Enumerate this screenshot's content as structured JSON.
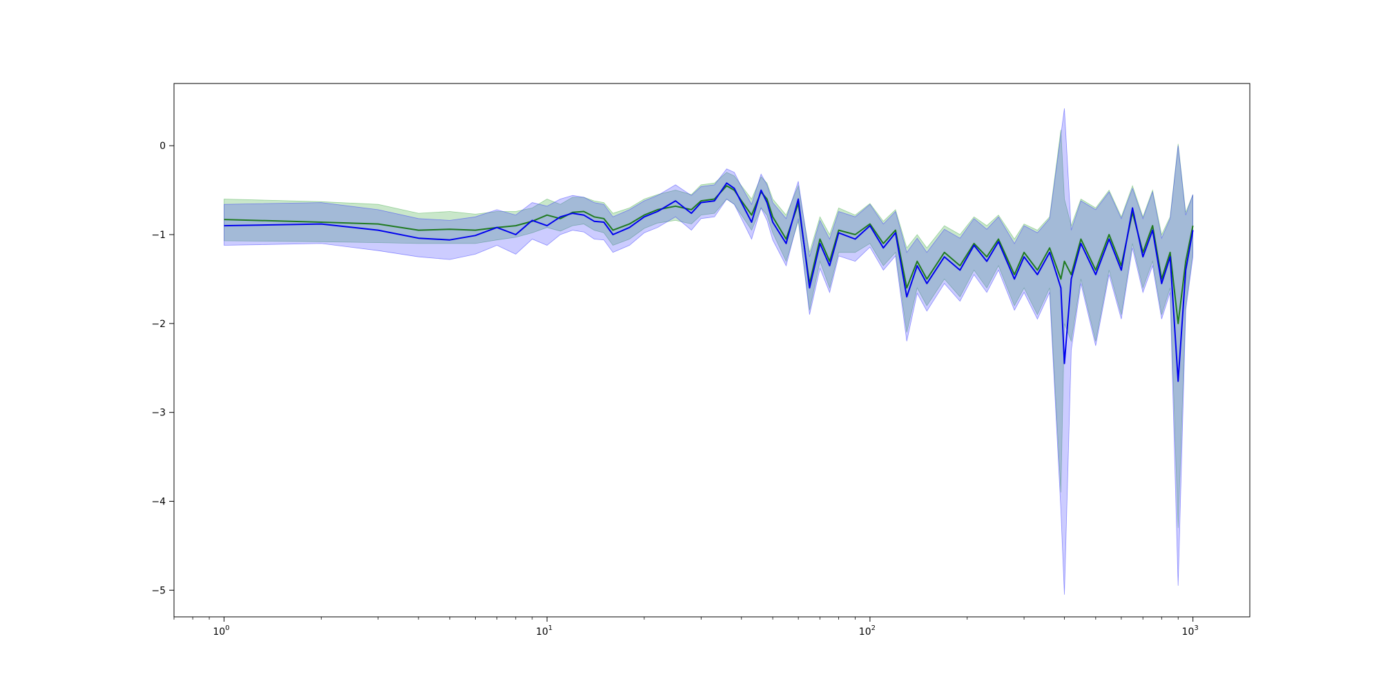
{
  "chart_data": {
    "type": "line",
    "title": "",
    "xlabel": "",
    "ylabel": "",
    "xscale": "log",
    "xlim": [
      0.7,
      1500
    ],
    "ylim": [
      -5.3,
      0.7
    ],
    "grid": false,
    "x_ticks": [
      1,
      10,
      100,
      1000
    ],
    "x_tick_labels": [
      {
        "base": "10",
        "exp": "0"
      },
      {
        "base": "10",
        "exp": "1"
      },
      {
        "base": "10",
        "exp": "2"
      },
      {
        "base": "10",
        "exp": "3"
      }
    ],
    "y_ticks": [
      0,
      -1,
      -2,
      -3,
      -4,
      -5
    ],
    "y_tick_labels": [
      "0",
      "−1",
      "−2",
      "−3",
      "−4",
      "−5"
    ],
    "series": [
      {
        "color": "#1f7a1f",
        "band_color": "#4caf50",
        "band_opacity": 0.3,
        "x": [
          1,
          2,
          3,
          4,
          5,
          6,
          7,
          8,
          9,
          10,
          11,
          12,
          13,
          14,
          15,
          16,
          18,
          20,
          22,
          25,
          28,
          30,
          33,
          36,
          38,
          40,
          43,
          46,
          48,
          50,
          55,
          60,
          65,
          70,
          75,
          80,
          90,
          100,
          110,
          120,
          130,
          140,
          150,
          170,
          190,
          210,
          230,
          250,
          280,
          300,
          330,
          360,
          390,
          400,
          420,
          450,
          500,
          550,
          600,
          650,
          700,
          750,
          800,
          850,
          900,
          950,
          1000
        ],
        "values": [
          -0.83,
          -0.86,
          -0.88,
          -0.95,
          -0.94,
          -0.95,
          -0.92,
          -0.9,
          -0.85,
          -0.78,
          -0.82,
          -0.75,
          -0.74,
          -0.8,
          -0.82,
          -0.95,
          -0.88,
          -0.78,
          -0.72,
          -0.68,
          -0.72,
          -0.62,
          -0.6,
          -0.45,
          -0.5,
          -0.62,
          -0.78,
          -0.52,
          -0.6,
          -0.8,
          -1.05,
          -0.65,
          -1.55,
          -1.05,
          -1.3,
          -0.95,
          -1.0,
          -0.88,
          -1.1,
          -0.95,
          -1.6,
          -1.3,
          -1.5,
          -1.2,
          -1.35,
          -1.1,
          -1.25,
          -1.05,
          -1.45,
          -1.2,
          -1.4,
          -1.15,
          -1.5,
          -1.3,
          -1.45,
          -1.05,
          -1.4,
          -1.0,
          -1.35,
          -0.75,
          -1.2,
          -0.9,
          -1.5,
          -1.2,
          -2.0,
          -1.3,
          -0.9
        ],
        "lower": [
          -1.07,
          -1.08,
          -1.09,
          -1.1,
          -1.1,
          -1.1,
          -1.06,
          -1.03,
          -0.98,
          -0.92,
          -0.96,
          -0.9,
          -0.88,
          -0.95,
          -0.98,
          -1.12,
          -1.05,
          -0.93,
          -0.87,
          -0.84,
          -0.88,
          -0.78,
          -0.76,
          -0.6,
          -0.66,
          -0.78,
          -0.95,
          -0.7,
          -0.78,
          -0.98,
          -1.3,
          -0.85,
          -1.85,
          -1.3,
          -1.6,
          -1.2,
          -1.2,
          -1.1,
          -1.35,
          -1.2,
          -2.1,
          -1.6,
          -1.8,
          -1.5,
          -1.7,
          -1.4,
          -1.6,
          -1.35,
          -1.8,
          -1.6,
          -1.9,
          -1.6,
          -3.9,
          -2.0,
          -2.2,
          -1.5,
          -2.2,
          -1.4,
          -1.9,
          -1.1,
          -1.6,
          -1.3,
          -1.9,
          -1.6,
          -4.3,
          -1.8,
          -1.2
        ],
        "upper": [
          -0.6,
          -0.63,
          -0.66,
          -0.76,
          -0.74,
          -0.77,
          -0.74,
          -0.74,
          -0.7,
          -0.6,
          -0.66,
          -0.58,
          -0.58,
          -0.62,
          -0.64,
          -0.76,
          -0.7,
          -0.6,
          -0.55,
          -0.5,
          -0.55,
          -0.44,
          -0.42,
          -0.3,
          -0.34,
          -0.45,
          -0.6,
          -0.35,
          -0.42,
          -0.6,
          -0.78,
          -0.45,
          -1.2,
          -0.8,
          -1.0,
          -0.7,
          -0.78,
          -0.65,
          -0.85,
          -0.72,
          -1.15,
          -1.0,
          -1.15,
          -0.9,
          -1.0,
          -0.8,
          -0.9,
          -0.78,
          -1.05,
          -0.88,
          -0.95,
          -0.8,
          0.18,
          -0.6,
          -0.9,
          -0.6,
          -0.7,
          -0.5,
          -0.8,
          -0.45,
          -0.8,
          -0.5,
          -1.0,
          -0.8,
          0.02,
          -0.75,
          -0.55
        ]
      },
      {
        "color": "#0000ee",
        "band_color": "#3333ff",
        "band_opacity": 0.25,
        "x": [
          1,
          2,
          3,
          4,
          5,
          6,
          7,
          8,
          9,
          10,
          11,
          12,
          13,
          14,
          15,
          16,
          18,
          20,
          22,
          25,
          28,
          30,
          33,
          36,
          38,
          40,
          43,
          46,
          48,
          50,
          55,
          60,
          65,
          70,
          75,
          80,
          90,
          100,
          110,
          120,
          130,
          140,
          150,
          170,
          190,
          210,
          230,
          250,
          280,
          300,
          330,
          360,
          390,
          400,
          420,
          450,
          500,
          550,
          600,
          650,
          700,
          750,
          800,
          850,
          900,
          950,
          1000
        ],
        "values": [
          -0.9,
          -0.88,
          -0.95,
          -1.04,
          -1.06,
          -1.01,
          -0.92,
          -1.0,
          -0.84,
          -0.9,
          -0.8,
          -0.76,
          -0.78,
          -0.85,
          -0.86,
          -1.0,
          -0.92,
          -0.8,
          -0.74,
          -0.62,
          -0.76,
          -0.64,
          -0.62,
          -0.42,
          -0.48,
          -0.64,
          -0.86,
          -0.5,
          -0.64,
          -0.86,
          -1.1,
          -0.6,
          -1.6,
          -1.1,
          -1.35,
          -0.98,
          -1.05,
          -0.9,
          -1.15,
          -0.98,
          -1.7,
          -1.35,
          -1.55,
          -1.25,
          -1.4,
          -1.12,
          -1.3,
          -1.08,
          -1.5,
          -1.25,
          -1.45,
          -1.2,
          -1.6,
          -2.45,
          -1.5,
          -1.1,
          -1.45,
          -1.05,
          -1.4,
          -0.7,
          -1.25,
          -0.95,
          -1.55,
          -1.25,
          -2.65,
          -1.4,
          -0.95
        ],
        "lower": [
          -1.12,
          -1.1,
          -1.18,
          -1.25,
          -1.28,
          -1.22,
          -1.12,
          -1.22,
          -1.05,
          -1.12,
          -1.0,
          -0.95,
          -0.97,
          -1.05,
          -1.06,
          -1.2,
          -1.12,
          -0.98,
          -0.92,
          -0.8,
          -0.95,
          -0.82,
          -0.8,
          -0.6,
          -0.66,
          -0.82,
          -1.05,
          -0.7,
          -0.84,
          -1.06,
          -1.35,
          -0.82,
          -1.9,
          -1.38,
          -1.65,
          -1.24,
          -1.3,
          -1.14,
          -1.4,
          -1.24,
          -2.2,
          -1.66,
          -1.86,
          -1.55,
          -1.75,
          -1.45,
          -1.65,
          -1.4,
          -1.85,
          -1.65,
          -1.95,
          -1.65,
          -4.1,
          -5.05,
          -2.3,
          -1.55,
          -2.25,
          -1.45,
          -1.95,
          -1.15,
          -1.65,
          -1.35,
          -1.95,
          -1.65,
          -4.95,
          -1.85,
          -1.25
        ],
        "upper": [
          -0.66,
          -0.64,
          -0.72,
          -0.82,
          -0.84,
          -0.8,
          -0.72,
          -0.78,
          -0.64,
          -0.68,
          -0.6,
          -0.56,
          -0.58,
          -0.64,
          -0.66,
          -0.8,
          -0.72,
          -0.62,
          -0.56,
          -0.44,
          -0.56,
          -0.46,
          -0.44,
          -0.26,
          -0.3,
          -0.46,
          -0.66,
          -0.32,
          -0.44,
          -0.64,
          -0.82,
          -0.4,
          -1.25,
          -0.84,
          -1.05,
          -0.74,
          -0.8,
          -0.66,
          -0.88,
          -0.74,
          -1.2,
          -1.04,
          -1.2,
          -0.94,
          -1.04,
          -0.82,
          -0.94,
          -0.8,
          -1.1,
          -0.9,
          -0.98,
          -0.82,
          0.12,
          0.42,
          -0.95,
          -0.62,
          -0.72,
          -0.52,
          -0.82,
          -0.48,
          -0.82,
          -0.52,
          -1.04,
          -0.82,
          0.0,
          -0.78,
          -0.55
        ]
      }
    ]
  }
}
